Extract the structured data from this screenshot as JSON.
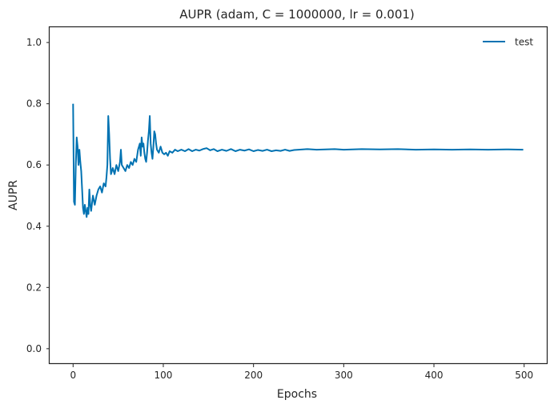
{
  "chart_data": {
    "type": "line",
    "title": "AUPR (adam, C = 1000000, lr = 0.001)",
    "xlabel": "Epochs",
    "ylabel": "AUPR",
    "xlim": [
      -26,
      526
    ],
    "ylim": [
      -0.05,
      1.05
    ],
    "xticks": [
      0,
      100,
      200,
      300,
      400,
      500
    ],
    "xtick_labels": [
      "0",
      "100",
      "200",
      "300",
      "400",
      "500"
    ],
    "yticks": [
      0.0,
      0.2,
      0.4,
      0.6,
      0.8,
      1.0
    ],
    "ytick_labels": [
      "0.0",
      "0.2",
      "0.4",
      "0.6",
      "0.8",
      "1.0"
    ],
    "grid": false,
    "legend": {
      "position": "top-right"
    },
    "series": [
      {
        "name": "test",
        "color": "#0072b2",
        "points": [
          [
            0,
            0.8
          ],
          [
            1,
            0.48
          ],
          [
            2,
            0.47
          ],
          [
            3,
            0.6
          ],
          [
            4,
            0.69
          ],
          [
            5,
            0.66
          ],
          [
            6,
            0.6
          ],
          [
            7,
            0.65
          ],
          [
            8,
            0.61
          ],
          [
            9,
            0.58
          ],
          [
            10,
            0.52
          ],
          [
            11,
            0.46
          ],
          [
            12,
            0.44
          ],
          [
            13,
            0.47
          ],
          [
            14,
            0.45
          ],
          [
            15,
            0.43
          ],
          [
            16,
            0.46
          ],
          [
            17,
            0.44
          ],
          [
            18,
            0.52
          ],
          [
            19,
            0.47
          ],
          [
            20,
            0.45
          ],
          [
            22,
            0.5
          ],
          [
            24,
            0.47
          ],
          [
            26,
            0.5
          ],
          [
            28,
            0.52
          ],
          [
            30,
            0.53
          ],
          [
            32,
            0.51
          ],
          [
            34,
            0.54
          ],
          [
            36,
            0.53
          ],
          [
            37,
            0.56
          ],
          [
            38,
            0.6
          ],
          [
            39,
            0.76
          ],
          [
            40,
            0.7
          ],
          [
            41,
            0.62
          ],
          [
            42,
            0.57
          ],
          [
            44,
            0.59
          ],
          [
            46,
            0.57
          ],
          [
            48,
            0.6
          ],
          [
            50,
            0.58
          ],
          [
            52,
            0.61
          ],
          [
            53,
            0.65
          ],
          [
            54,
            0.6
          ],
          [
            56,
            0.59
          ],
          [
            58,
            0.58
          ],
          [
            60,
            0.6
          ],
          [
            62,
            0.59
          ],
          [
            64,
            0.61
          ],
          [
            66,
            0.6
          ],
          [
            68,
            0.62
          ],
          [
            70,
            0.61
          ],
          [
            72,
            0.65
          ],
          [
            74,
            0.67
          ],
          [
            75,
            0.63
          ],
          [
            76,
            0.69
          ],
          [
            77,
            0.66
          ],
          [
            78,
            0.67
          ],
          [
            79,
            0.64
          ],
          [
            80,
            0.62
          ],
          [
            81,
            0.61
          ],
          [
            82,
            0.64
          ],
          [
            83,
            0.68
          ],
          [
            84,
            0.71
          ],
          [
            85,
            0.76
          ],
          [
            86,
            0.67
          ],
          [
            87,
            0.64
          ],
          [
            88,
            0.62
          ],
          [
            89,
            0.66
          ],
          [
            90,
            0.71
          ],
          [
            91,
            0.7
          ],
          [
            92,
            0.67
          ],
          [
            93,
            0.65
          ],
          [
            95,
            0.64
          ],
          [
            97,
            0.66
          ],
          [
            99,
            0.64
          ],
          [
            101,
            0.635
          ],
          [
            103,
            0.64
          ],
          [
            105,
            0.63
          ],
          [
            107,
            0.645
          ],
          [
            110,
            0.64
          ],
          [
            113,
            0.65
          ],
          [
            116,
            0.645
          ],
          [
            120,
            0.65
          ],
          [
            124,
            0.645
          ],
          [
            128,
            0.652
          ],
          [
            132,
            0.645
          ],
          [
            136,
            0.65
          ],
          [
            140,
            0.647
          ],
          [
            144,
            0.652
          ],
          [
            148,
            0.655
          ],
          [
            152,
            0.648
          ],
          [
            156,
            0.652
          ],
          [
            160,
            0.645
          ],
          [
            165,
            0.65
          ],
          [
            170,
            0.646
          ],
          [
            175,
            0.652
          ],
          [
            180,
            0.645
          ],
          [
            185,
            0.65
          ],
          [
            190,
            0.647
          ],
          [
            195,
            0.651
          ],
          [
            200,
            0.645
          ],
          [
            205,
            0.649
          ],
          [
            210,
            0.646
          ],
          [
            215,
            0.65
          ],
          [
            220,
            0.645
          ],
          [
            225,
            0.648
          ],
          [
            230,
            0.646
          ],
          [
            235,
            0.65
          ],
          [
            240,
            0.646
          ],
          [
            245,
            0.649
          ],
          [
            250,
            0.65
          ],
          [
            260,
            0.652
          ],
          [
            270,
            0.65
          ],
          [
            280,
            0.651
          ],
          [
            290,
            0.652
          ],
          [
            300,
            0.65
          ],
          [
            320,
            0.652
          ],
          [
            340,
            0.651
          ],
          [
            360,
            0.652
          ],
          [
            380,
            0.65
          ],
          [
            400,
            0.651
          ],
          [
            420,
            0.65
          ],
          [
            440,
            0.651
          ],
          [
            460,
            0.65
          ],
          [
            480,
            0.651
          ],
          [
            499,
            0.65
          ]
        ]
      }
    ]
  }
}
